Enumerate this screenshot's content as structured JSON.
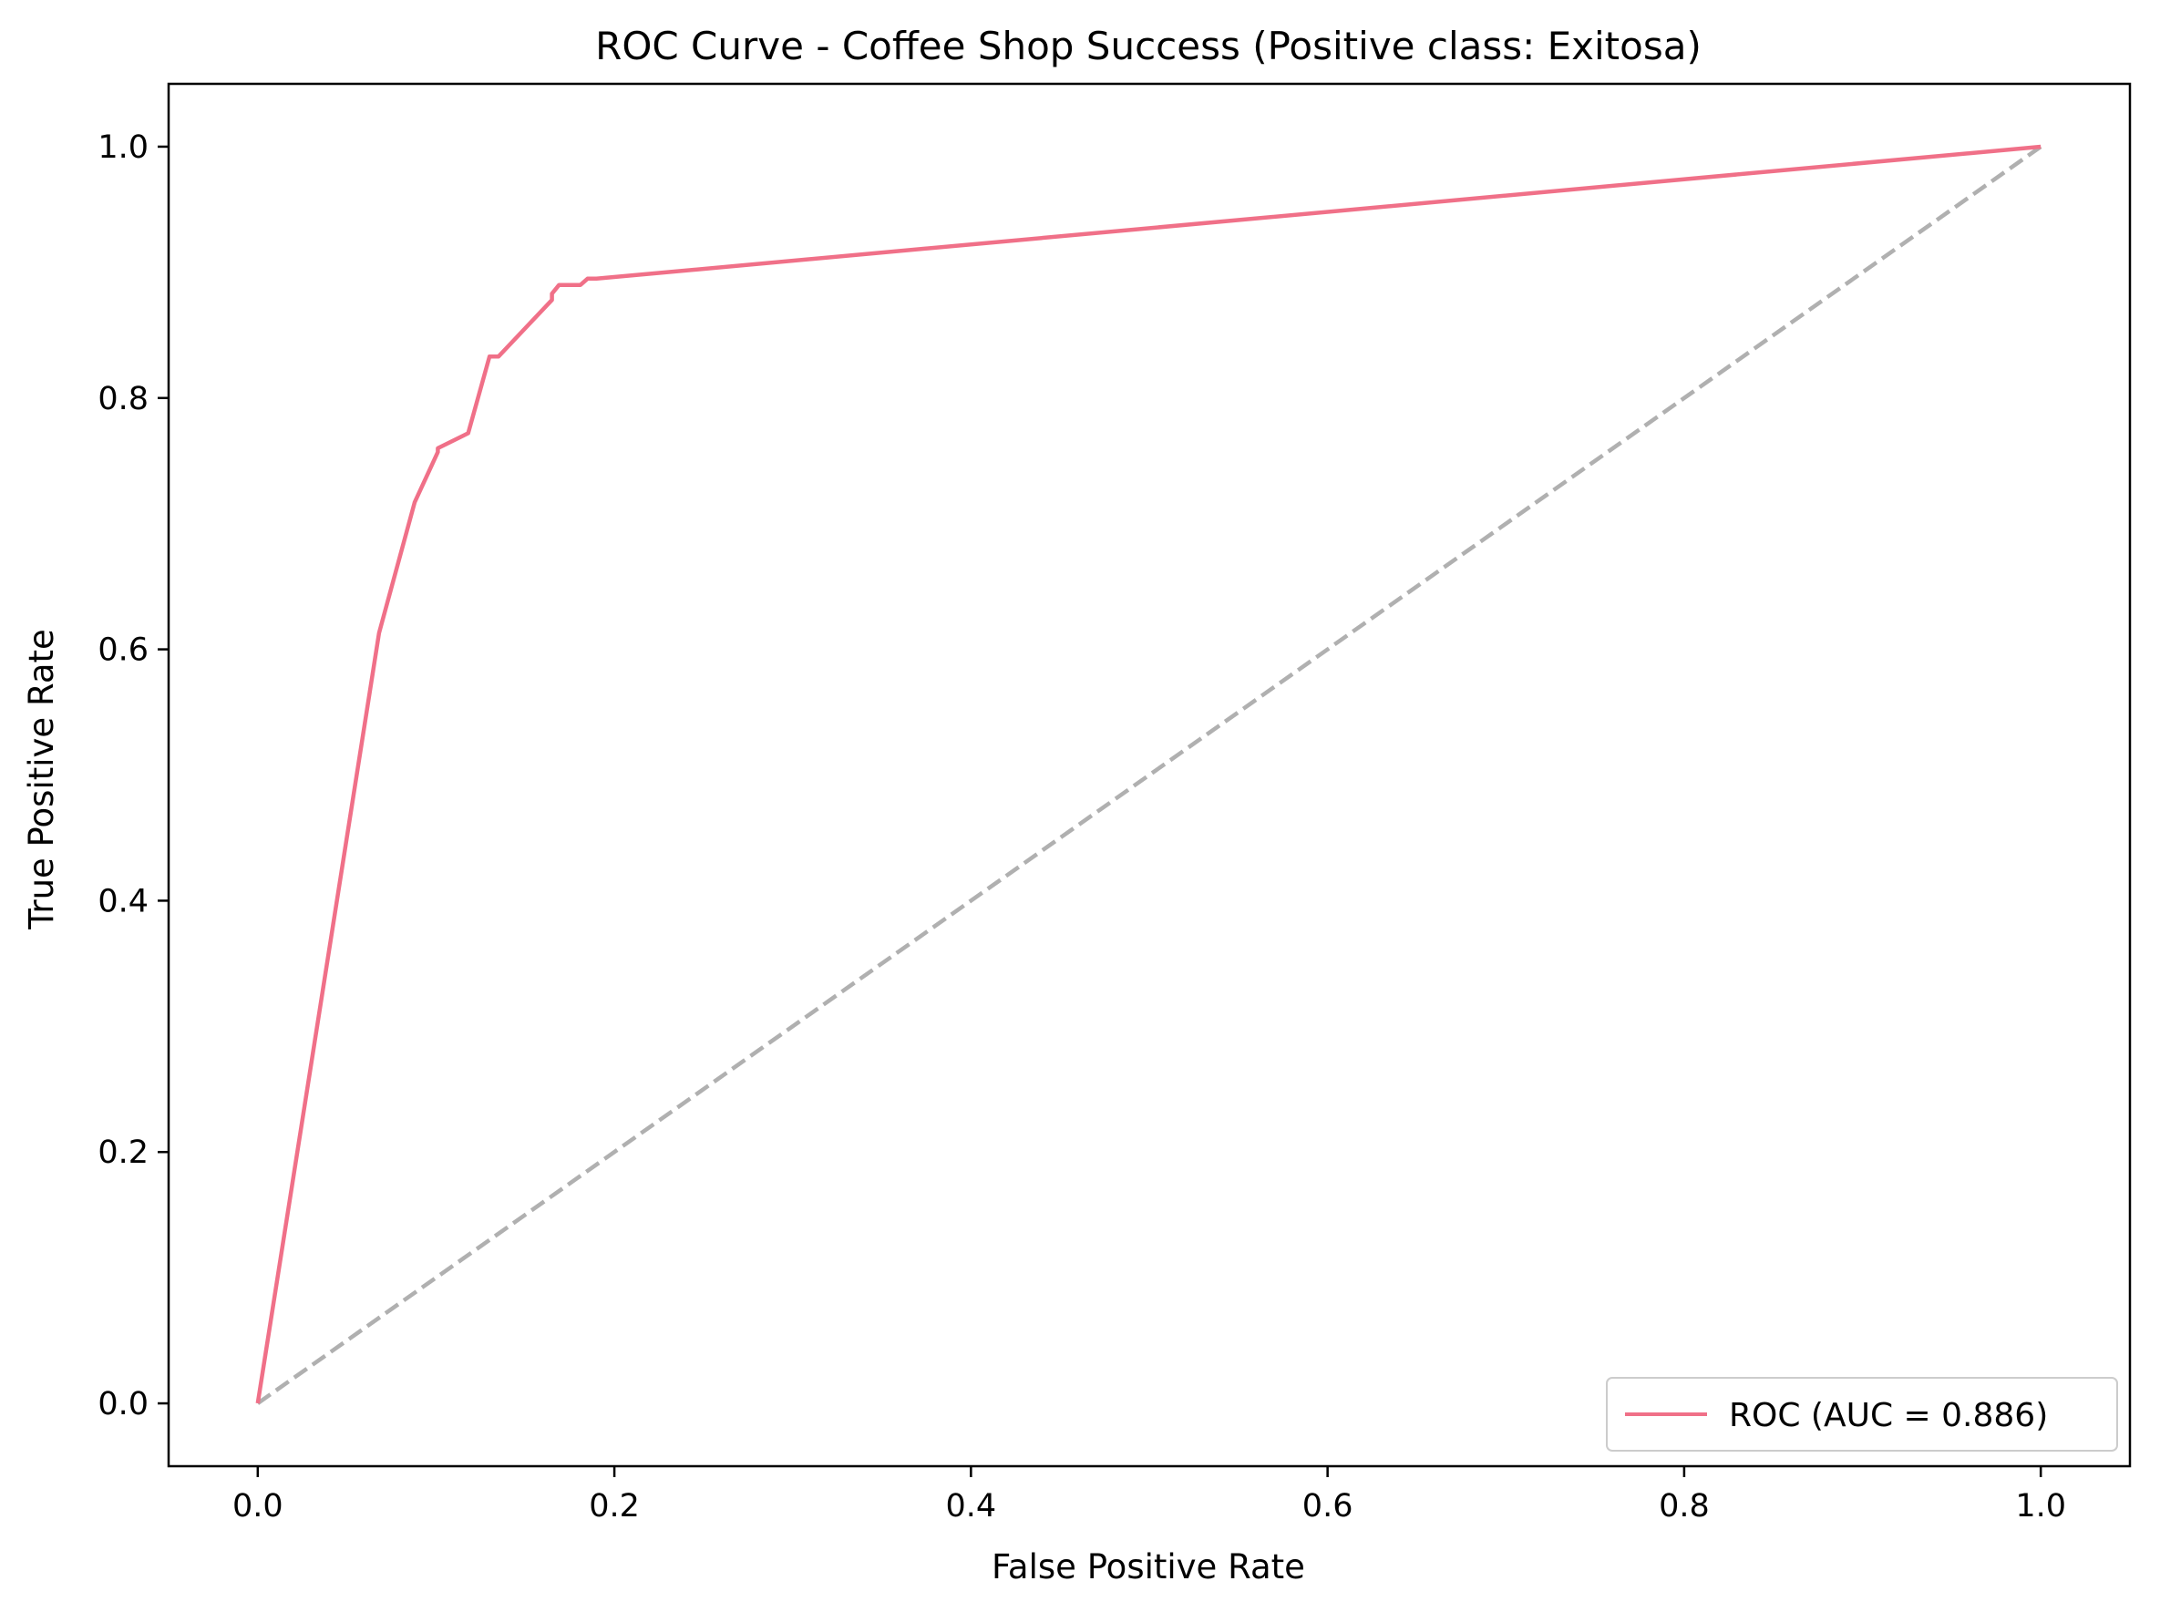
{
  "chart_data": {
    "type": "line",
    "title": "ROC Curve - Coffee Shop Success (Positive class: Exitosa)",
    "xlabel": "False Positive Rate",
    "ylabel": "True Positive Rate",
    "xlim": [
      -0.05,
      1.05
    ],
    "ylim": [
      -0.05,
      1.05
    ],
    "xticks": [
      "0.0",
      "0.2",
      "0.4",
      "0.6",
      "0.8",
      "1.0"
    ],
    "yticks": [
      "0.0",
      "0.2",
      "0.4",
      "0.6",
      "0.8",
      "1.0"
    ],
    "grid": false,
    "legend_position": "lower-right",
    "series": [
      {
        "name": "ROC (AUC = 0.886)",
        "color": "#f07088",
        "style": "solid",
        "x": [
          0.0,
          0.068,
          0.088,
          0.101,
          0.101,
          0.118,
          0.13,
          0.135,
          0.165,
          0.165,
          0.169,
          0.181,
          0.185,
          0.19,
          1.0
        ],
        "y": [
          0.0,
          0.613,
          0.717,
          0.757,
          0.76,
          0.772,
          0.833,
          0.833,
          0.878,
          0.883,
          0.89,
          0.89,
          0.895,
          0.895,
          1.0
        ]
      },
      {
        "name": "",
        "color": "#b0b0b0",
        "style": "dashed",
        "x": [
          0.0,
          1.0
        ],
        "y": [
          0.0,
          1.0
        ]
      }
    ]
  }
}
